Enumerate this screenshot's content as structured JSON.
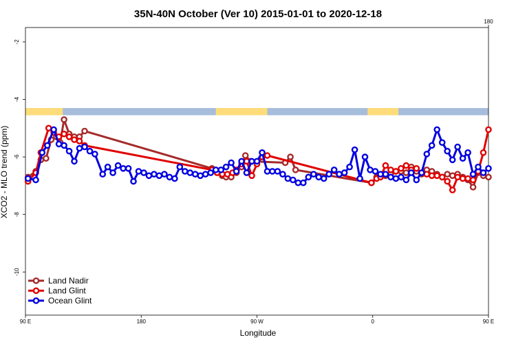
{
  "chart_data": {
    "type": "line",
    "title": "35N-40N October (Ver 10)   2015-01-01 to 2020-12-18",
    "xlabel": "Longitude",
    "ylabel": "XCO2 - MLO trend (ppm)",
    "xlim": [
      90,
      450
    ],
    "ylim": [
      -11.5,
      -1.5
    ],
    "x_ticks": [
      {
        "value": 90,
        "label": "90 E"
      },
      {
        "value": 180,
        "label": "180"
      },
      {
        "value": 270,
        "label": "90 W"
      },
      {
        "value": 360,
        "label": "0"
      },
      {
        "value": 450,
        "label": "90 E"
      }
    ],
    "x_ticks_top": [
      {
        "value": 450,
        "label": "180"
      }
    ],
    "y_ticks": [
      {
        "value": -2,
        "label": "-2"
      },
      {
        "value": -4,
        "label": "-4"
      },
      {
        "value": -6,
        "label": "-6"
      },
      {
        "value": -8,
        "label": "-8"
      },
      {
        "value": -10,
        "label": "-10"
      }
    ],
    "land_mask_band": {
      "y_range": [
        -4.55,
        -4.3
      ],
      "ocean_color": "#a6bddb",
      "land_color": "#fedc7a",
      "land_segments": [
        [
          90,
          119
        ],
        [
          238,
          278
        ],
        [
          356,
          380
        ],
        [
          483,
          498
        ]
      ]
    },
    "legend_position": "bottom-left",
    "series": [
      {
        "name": "Land Nadir",
        "color": "#a52a2a",
        "x": [
          92,
          98,
          102,
          106,
          110,
          114,
          117,
          120,
          124,
          128,
          132,
          136,
          235,
          239,
          243,
          246,
          250,
          254,
          258,
          261,
          265,
          292,
          296,
          300,
          359,
          363,
          366,
          370,
          374,
          378,
          382,
          386,
          390,
          394,
          398,
          402,
          406,
          410,
          414,
          418,
          422,
          426,
          430,
          434,
          438,
          442,
          446,
          450
        ],
        "y": [
          -6.7,
          -6.5,
          -6.1,
          -6.05,
          -5.4,
          -5.3,
          -5.5,
          -4.7,
          -5.2,
          -5.3,
          -5.3,
          -5.1,
          -6.4,
          -6.5,
          -6.65,
          -6.7,
          -6.7,
          -6.55,
          -6.35,
          -5.95,
          -6.15,
          -6.2,
          -6.0,
          -6.45,
          -6.9,
          -6.7,
          -6.7,
          -6.65,
          -6.6,
          -6.5,
          -6.5,
          -6.55,
          -6.35,
          -6.5,
          -6.6,
          -6.45,
          -6.5,
          -6.6,
          -6.7,
          -6.6,
          -6.65,
          -6.6,
          -6.7,
          -6.8,
          -7.05,
          -6.55,
          -6.65,
          -6.7
        ]
      },
      {
        "name": "Land Glint",
        "color": "#e00000",
        "x": [
          92,
          98,
          102,
          108,
          112,
          116,
          120,
          124,
          128,
          132,
          136,
          235,
          239,
          243,
          247,
          251,
          254,
          258,
          262,
          266,
          270,
          274,
          278,
          359,
          363,
          366,
          370,
          374,
          378,
          382,
          386,
          390,
          394,
          398,
          402,
          406,
          410,
          414,
          418,
          422,
          426,
          430,
          434,
          438,
          442,
          446,
          450
        ],
        "y": [
          -6.85,
          -6.55,
          -5.85,
          -5.0,
          -5.15,
          -5.3,
          -5.2,
          -5.3,
          -5.4,
          -5.45,
          -5.6,
          -6.45,
          -6.55,
          -6.6,
          -6.6,
          -6.55,
          -6.45,
          -6.25,
          -6.15,
          -6.65,
          -6.25,
          -6.0,
          -5.95,
          -6.9,
          -6.75,
          -6.7,
          -6.3,
          -6.45,
          -6.5,
          -6.4,
          -6.3,
          -6.45,
          -6.4,
          -6.55,
          -6.6,
          -6.65,
          -6.65,
          -6.7,
          -6.85,
          -7.15,
          -6.7,
          -6.75,
          -6.75,
          -6.8,
          -6.5,
          -5.85,
          -5.05
        ]
      },
      {
        "name": "Ocean Glint",
        "color": "#0000e0",
        "x": [
          92,
          98,
          103,
          107,
          112,
          116,
          120,
          124,
          128,
          132,
          136,
          140,
          144,
          150,
          154,
          158,
          162,
          166,
          170,
          174,
          178,
          182,
          186,
          190,
          194,
          198,
          202,
          206,
          210,
          214,
          218,
          222,
          226,
          230,
          234,
          238,
          242,
          246,
          250,
          254,
          258,
          262,
          266,
          270,
          274,
          278,
          282,
          286,
          290,
          294,
          298,
          302,
          306,
          310,
          314,
          318,
          322,
          326,
          330,
          334,
          338,
          342,
          346,
          350,
          354,
          358,
          362,
          366,
          370,
          374,
          378,
          382,
          386,
          390,
          394,
          398,
          402,
          406,
          410,
          414,
          418,
          422,
          426,
          430,
          434,
          438,
          442,
          446,
          450
        ],
        "y": [
          -6.75,
          -6.8,
          -5.85,
          -5.6,
          -5.05,
          -5.55,
          -5.6,
          -5.8,
          -6.15,
          -5.7,
          -5.65,
          -5.8,
          -5.9,
          -6.6,
          -6.35,
          -6.55,
          -6.3,
          -6.4,
          -6.4,
          -6.85,
          -6.5,
          -6.55,
          -6.65,
          -6.6,
          -6.65,
          -6.6,
          -6.7,
          -6.75,
          -6.35,
          -6.5,
          -6.55,
          -6.6,
          -6.65,
          -6.6,
          -6.55,
          -6.45,
          -6.45,
          -6.35,
          -6.2,
          -6.5,
          -6.15,
          -6.55,
          -6.15,
          -6.15,
          -5.85,
          -6.5,
          -6.5,
          -6.5,
          -6.6,
          -6.75,
          -6.8,
          -6.9,
          -6.9,
          -6.7,
          -6.6,
          -6.7,
          -6.75,
          -6.6,
          -6.45,
          -6.6,
          -6.55,
          -6.35,
          -5.75,
          -6.75,
          -6.0,
          -6.45,
          -6.5,
          -6.6,
          -6.6,
          -6.7,
          -6.75,
          -6.7,
          -6.8,
          -6.55,
          -6.8,
          -6.55,
          -5.9,
          -5.6,
          -5.05,
          -5.5,
          -5.8,
          -6.1,
          -5.65,
          -6.05,
          -5.85,
          -6.6,
          -6.35,
          -6.55,
          -6.4
        ]
      }
    ]
  }
}
